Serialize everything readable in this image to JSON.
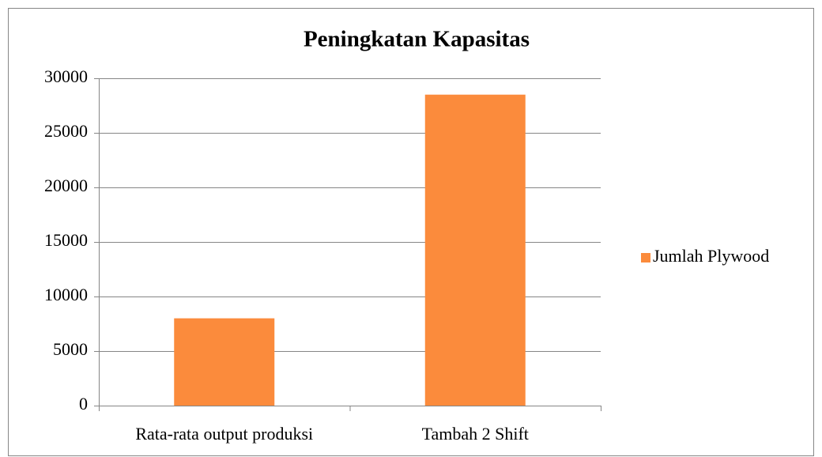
{
  "chart_data": {
    "type": "bar",
    "title": "Peningkatan Kapasitas",
    "categories": [
      "Rata-rata output produksi",
      "Tambah 2 Shift"
    ],
    "series": [
      {
        "name": "Jumlah Plywood",
        "color": "#fb8b3c",
        "values": [
          8000,
          28500
        ]
      }
    ],
    "ylim": [
      0,
      30000
    ],
    "yticks": [
      0,
      5000,
      10000,
      15000,
      20000,
      25000,
      30000
    ],
    "grid": true,
    "legend": "right"
  }
}
